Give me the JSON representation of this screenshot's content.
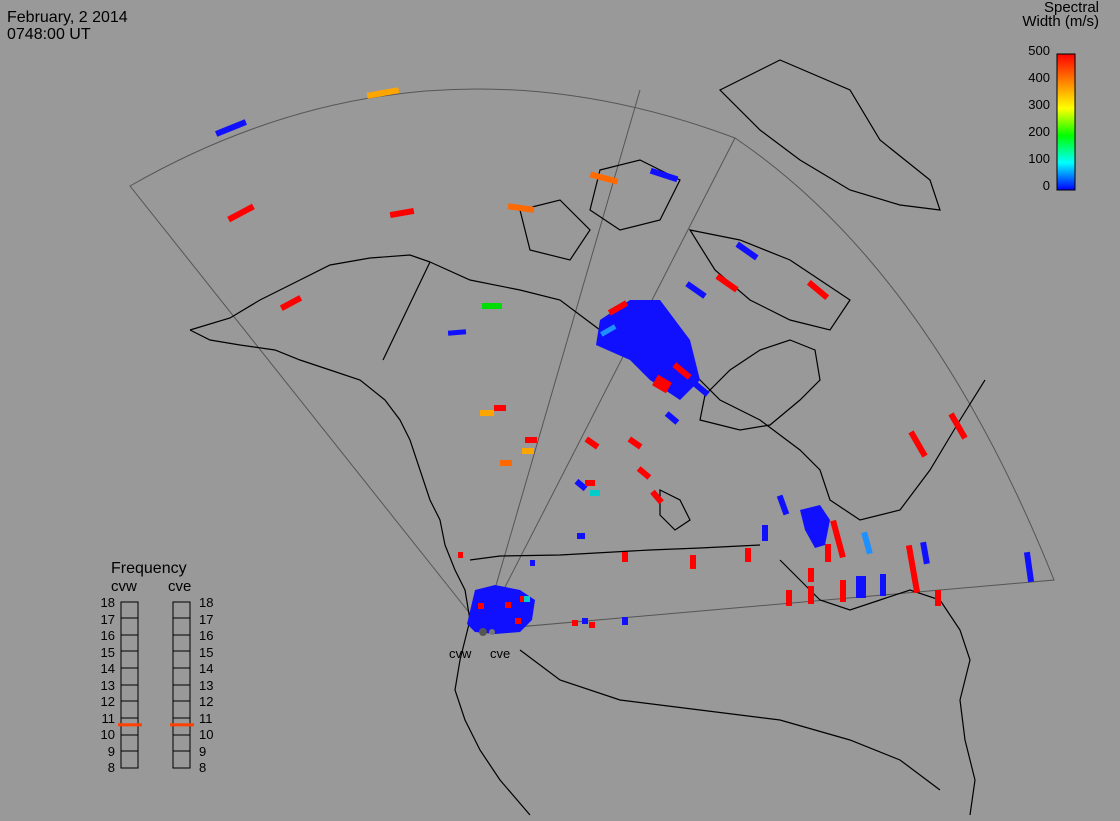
{
  "header": {
    "date": "February, 2 2014",
    "time": "0748:00 UT"
  },
  "colorbar": {
    "title_line1": "Spectral",
    "title_line2": "Width (m/s)",
    "ticks": [
      "500",
      "400",
      "300",
      "200",
      "100",
      "0"
    ],
    "min": 0,
    "max": 500,
    "colors": [
      "#0000ff",
      "#00ffff",
      "#00ff00",
      "#ffff00",
      "#ff8000",
      "#ff0000"
    ]
  },
  "frequency_panel": {
    "title": "Frequency",
    "left_label": "cvw",
    "right_label": "cve",
    "ticks": [
      "18",
      "17",
      "16",
      "15",
      "14",
      "13",
      "12",
      "11",
      "10",
      "9",
      "8"
    ],
    "cvw_value": 10.6,
    "cve_value": 10.6,
    "marker_color": "#ff4000"
  },
  "sites": {
    "west": "cvw",
    "east": "cve"
  },
  "colors": {
    "background": "#999999",
    "coast": "#000000",
    "fov": "#555555",
    "low": "#1010ff",
    "mid": "#ff6a00",
    "high": "#ff0000",
    "orange": "#ffa500",
    "green": "#00dd00",
    "cyan": "#00cccc"
  }
}
